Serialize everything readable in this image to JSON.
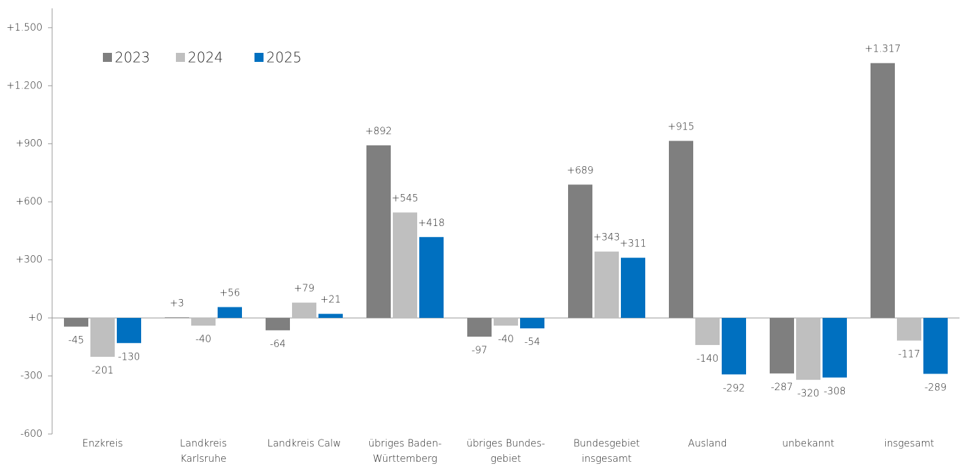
{
  "chart_data": {
    "type": "bar",
    "categories": [
      [
        "Enzkreis"
      ],
      [
        "Landkreis",
        "Karlsruhe"
      ],
      [
        "Landkreis Calw"
      ],
      [
        "übriges Baden-",
        "Württemberg"
      ],
      [
        "übriges Bundes-",
        "gebiet"
      ],
      [
        "Bundesgebiet",
        "insgesamt"
      ],
      [
        "Ausland"
      ],
      [
        "unbekannt"
      ],
      [
        "insgesamt"
      ]
    ],
    "series": [
      {
        "name": "2023",
        "color": "#7f7f7f",
        "values": [
          -45,
          3,
          -64,
          892,
          -97,
          689,
          915,
          -287,
          1317
        ],
        "value_labels": [
          "-45",
          "+3",
          "-64",
          "+892",
          "-97",
          "+689",
          "+915",
          "-287",
          "+1.317"
        ]
      },
      {
        "name": "2024",
        "color": "#bfbfbf",
        "values": [
          -201,
          -40,
          79,
          545,
          -40,
          343,
          -140,
          -320,
          -117
        ],
        "value_labels": [
          "-201",
          "-40",
          "+79",
          "+545",
          "-40",
          "+343",
          "-140",
          "-320",
          "-117"
        ]
      },
      {
        "name": "2025",
        "color": "#0070c0",
        "values": [
          -130,
          56,
          21,
          418,
          -54,
          311,
          -292,
          -308,
          -289
        ],
        "value_labels": [
          "-130",
          "+56",
          "+21",
          "+418",
          "-54",
          "+311",
          "-292",
          "-308",
          "-289"
        ]
      }
    ],
    "ylim": [
      -600,
      1600
    ],
    "yticks": [
      {
        "value": -600,
        "label": "-600"
      },
      {
        "value": -300,
        "label": "-300"
      },
      {
        "value": 0,
        "label": "+0"
      },
      {
        "value": 300,
        "label": "+300"
      },
      {
        "value": 600,
        "label": "+600"
      },
      {
        "value": 900,
        "label": "+900"
      },
      {
        "value": 1200,
        "label": "+1.200"
      },
      {
        "value": 1500,
        "label": "+1.500"
      }
    ],
    "legend": "top-left"
  }
}
